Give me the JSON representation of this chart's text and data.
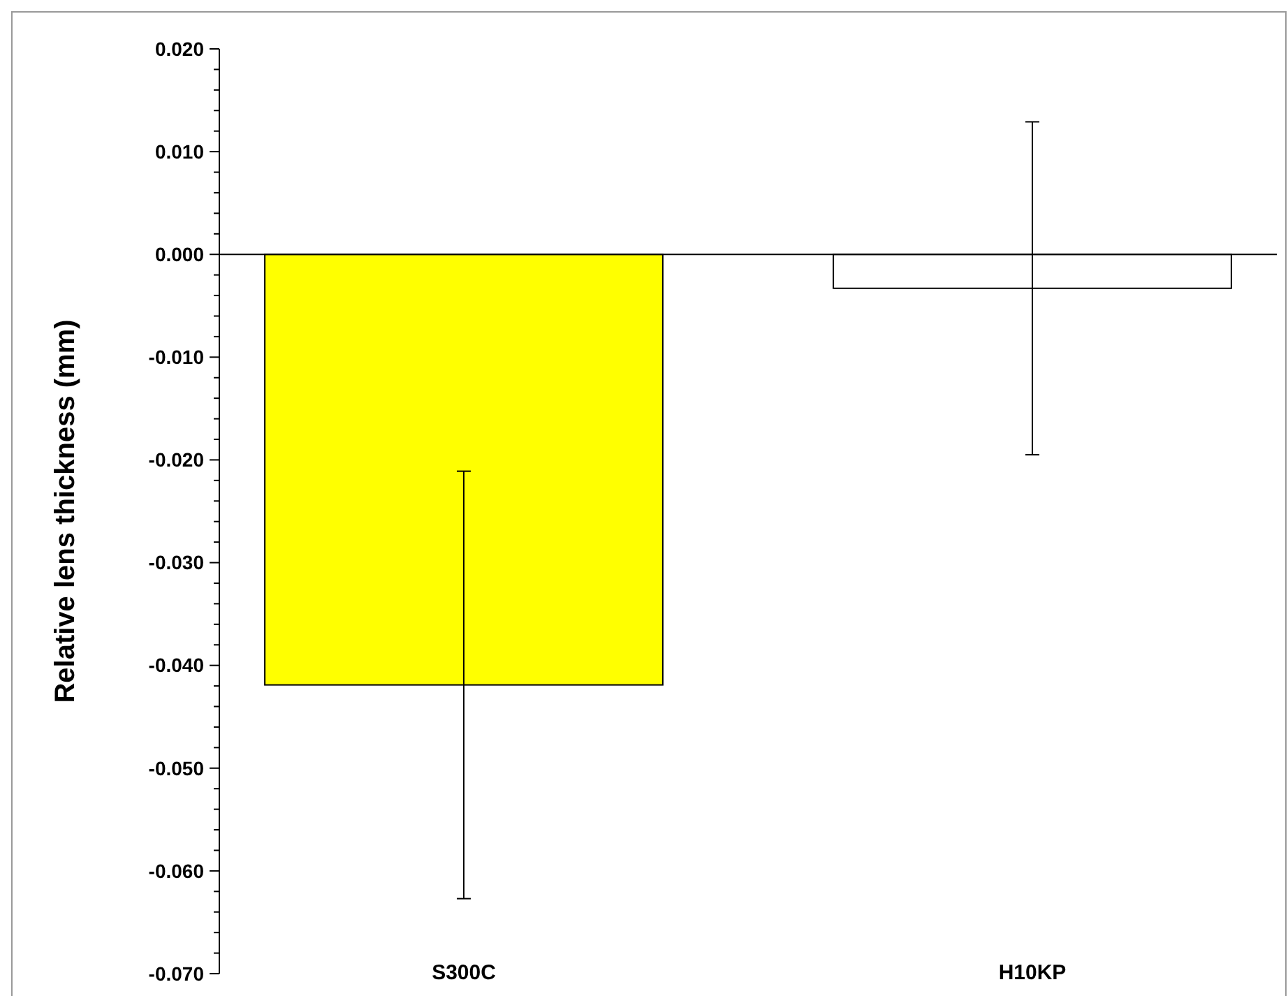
{
  "chart_data": {
    "type": "bar",
    "ylabel": "Relative lens thickness (mm)",
    "categories": [
      "S300C",
      "H10KP"
    ],
    "values": [
      -0.0419,
      -0.0033
    ],
    "errors": [
      0.0208,
      0.0162
    ],
    "colors": [
      "#ffff00",
      "#ffffff"
    ],
    "ylim": [
      -0.07,
      0.02
    ],
    "yticks": [
      {
        "value": -0.07,
        "label": "-0.070"
      },
      {
        "value": -0.06,
        "label": "-0.060"
      },
      {
        "value": -0.05,
        "label": "-0.050"
      },
      {
        "value": -0.04,
        "label": "-0.040"
      },
      {
        "value": -0.03,
        "label": "-0.030"
      },
      {
        "value": -0.02,
        "label": "-0.020"
      },
      {
        "value": -0.01,
        "label": "-0.010"
      },
      {
        "value": 0,
        "label": "0.000"
      },
      {
        "value": 0.01,
        "label": "0.010"
      },
      {
        "value": 0.02,
        "label": "0.020"
      }
    ],
    "tick_labels": true
  }
}
